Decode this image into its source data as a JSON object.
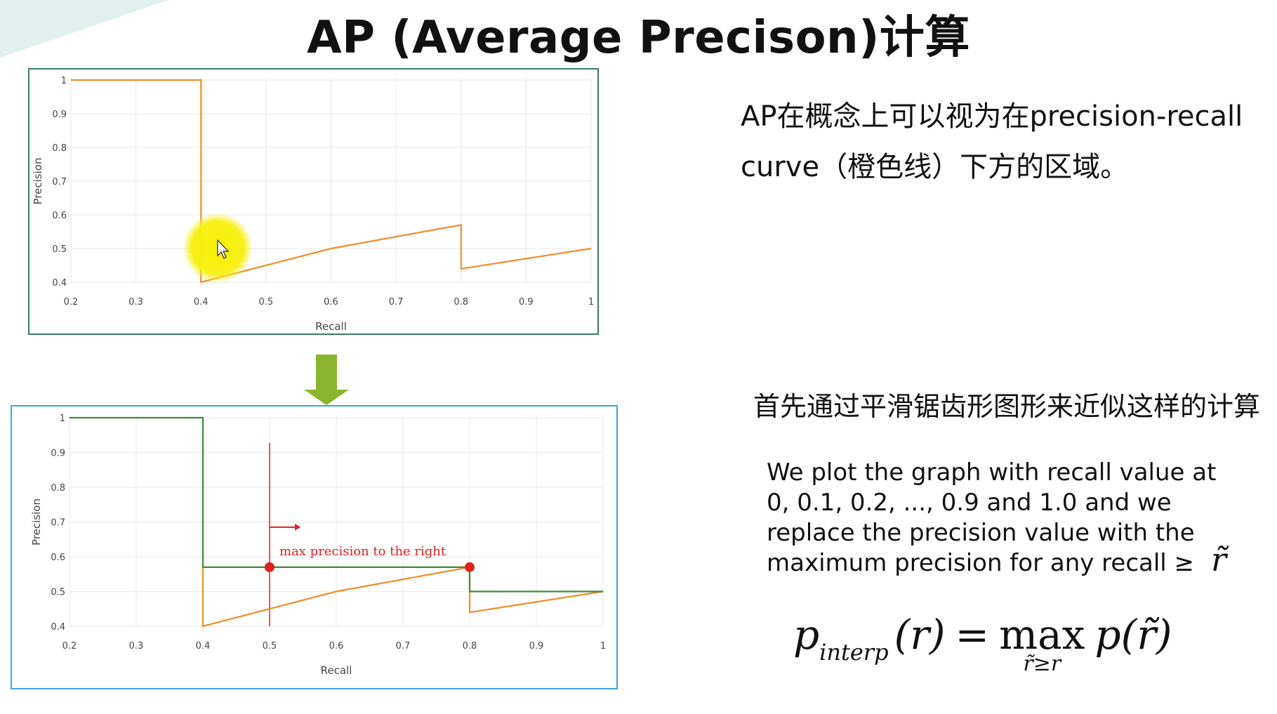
{
  "title": "AP (Average Precison)计算",
  "description_1": {
    "line1": "AP在概念上可以视为在precision-recall",
    "line2": "curve（橙色线）下方的区域。"
  },
  "description_2": "首先通过平滑锯齿形图形来近似这样的计算",
  "description_3": {
    "line1": "We plot the graph with recall  value at",
    "line2": "0, 0.1, 0.2, ..., 0.9 and 1.0 and we",
    "line3": "replace the precision value with the",
    "line4": "maximum precision for any recall ≥"
  },
  "rtilde": "r̃",
  "formula": {
    "p": "p",
    "sub": "interp",
    "lhs_arg": "(r)",
    "eq": "=",
    "max": "max",
    "under": "r̃≥r",
    "rhs": "p(r̃)"
  },
  "colors": {
    "orange": "#f28c28",
    "green": "#3e8a3a",
    "red": "#e02020",
    "arrow_green": "#8ab52e",
    "top_border": "#3c7a62",
    "bottom_border": "#3aa5dd"
  },
  "chart_data": [
    {
      "type": "line",
      "xlabel": "Recall",
      "ylabel": "Precision",
      "xlim": [
        0.2,
        1.0
      ],
      "ylim": [
        0.4,
        1.0
      ],
      "xticks": [
        "0.2",
        "0.3",
        "0.4",
        "0.5",
        "0.6",
        "0.7",
        "0.8",
        "0.9",
        "1"
      ],
      "yticks": [
        "0.4",
        "0.5",
        "0.6",
        "0.7",
        "0.8",
        "0.9",
        "1"
      ],
      "grid": true,
      "series": [
        {
          "color": "#f28c28",
          "points": [
            [
              0.2,
              1.0
            ],
            [
              0.4,
              1.0
            ],
            [
              0.4,
              0.4
            ],
            [
              0.6,
              0.5
            ],
            [
              0.8,
              0.57
            ],
            [
              0.8,
              0.44
            ],
            [
              1.0,
              0.5
            ]
          ]
        }
      ]
    },
    {
      "type": "line",
      "xlabel": "Recall",
      "ylabel": "Precision",
      "xlim": [
        0.2,
        1.0
      ],
      "ylim": [
        0.4,
        1.0
      ],
      "xticks": [
        "0.2",
        "0.3",
        "0.4",
        "0.5",
        "0.6",
        "0.7",
        "0.8",
        "0.9",
        "1"
      ],
      "yticks": [
        "0.4",
        "0.5",
        "0.6",
        "0.7",
        "0.8",
        "0.9",
        "1"
      ],
      "grid": true,
      "series": [
        {
          "color": "#f28c28",
          "points": [
            [
              0.4,
              0.57
            ],
            [
              0.4,
              0.4
            ],
            [
              0.6,
              0.5
            ],
            [
              0.8,
              0.57
            ],
            [
              0.8,
              0.44
            ],
            [
              1.0,
              0.5
            ]
          ]
        },
        {
          "color": "#3e8a3a",
          "points": [
            [
              0.2,
              1.0
            ],
            [
              0.4,
              1.0
            ],
            [
              0.4,
              0.57
            ],
            [
              0.8,
              0.57
            ],
            [
              0.8,
              0.5
            ],
            [
              1.0,
              0.5
            ]
          ]
        }
      ],
      "markers": [
        [
          0.5,
          0.57
        ],
        [
          0.8,
          0.57
        ]
      ],
      "vline": 0.5,
      "annotation": "max precision to the right"
    }
  ]
}
